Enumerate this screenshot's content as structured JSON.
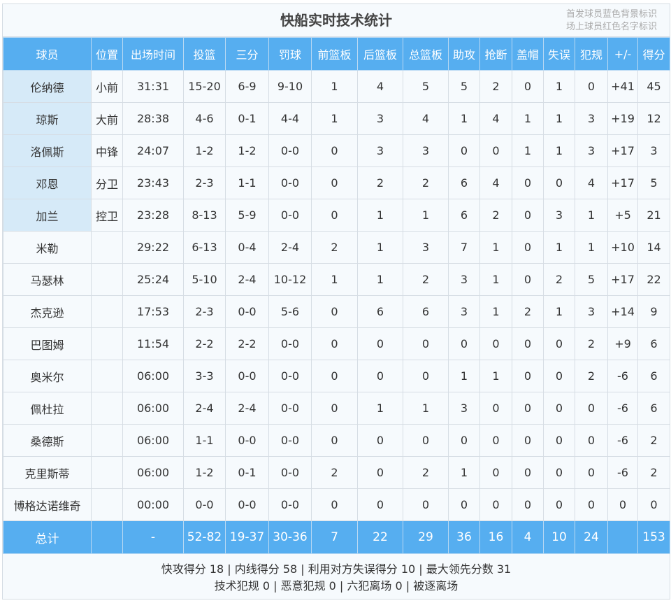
{
  "title": "快船实时技术统计",
  "legend": [
    "首发球员蓝色背景标识",
    "场上球员红色名字标识"
  ],
  "columns": [
    "球员",
    "位置",
    "出场时间",
    "投篮",
    "三分",
    "罚球",
    "前篮板",
    "后篮板",
    "总篮板",
    "助攻",
    "抢断",
    "盖帽",
    "失误",
    "犯规",
    "+/-",
    "得分"
  ],
  "rows": [
    {
      "starter": true,
      "cells": [
        "伦纳德",
        "小前",
        "31:31",
        "15-20",
        "6-9",
        "9-10",
        "1",
        "4",
        "5",
        "5",
        "2",
        "0",
        "1",
        "0",
        "+41",
        "45"
      ]
    },
    {
      "starter": true,
      "cells": [
        "琼斯",
        "大前",
        "28:38",
        "4-6",
        "0-1",
        "4-4",
        "1",
        "3",
        "4",
        "1",
        "4",
        "1",
        "1",
        "3",
        "+19",
        "12"
      ]
    },
    {
      "starter": true,
      "cells": [
        "洛佩斯",
        "中锋",
        "24:07",
        "1-2",
        "1-2",
        "0-0",
        "0",
        "3",
        "3",
        "0",
        "0",
        "1",
        "1",
        "3",
        "+17",
        "3"
      ]
    },
    {
      "starter": true,
      "cells": [
        "邓恩",
        "分卫",
        "23:43",
        "2-3",
        "1-1",
        "0-0",
        "0",
        "2",
        "2",
        "6",
        "4",
        "0",
        "0",
        "4",
        "+17",
        "5"
      ]
    },
    {
      "starter": true,
      "cells": [
        "加兰",
        "控卫",
        "23:28",
        "8-13",
        "5-9",
        "0-0",
        "0",
        "1",
        "1",
        "6",
        "2",
        "0",
        "3",
        "1",
        "+5",
        "21"
      ]
    },
    {
      "starter": false,
      "cells": [
        "米勒",
        "",
        "29:22",
        "6-13",
        "0-4",
        "2-4",
        "2",
        "1",
        "3",
        "7",
        "1",
        "0",
        "1",
        "1",
        "+10",
        "14"
      ]
    },
    {
      "starter": false,
      "cells": [
        "马瑟林",
        "",
        "25:24",
        "5-10",
        "2-4",
        "10-12",
        "1",
        "1",
        "2",
        "3",
        "1",
        "0",
        "2",
        "5",
        "+17",
        "22"
      ]
    },
    {
      "starter": false,
      "cells": [
        "杰克逊",
        "",
        "17:53",
        "2-3",
        "0-0",
        "5-6",
        "0",
        "6",
        "6",
        "3",
        "1",
        "2",
        "1",
        "3",
        "+14",
        "9"
      ]
    },
    {
      "starter": false,
      "cells": [
        "巴图姆",
        "",
        "11:54",
        "2-2",
        "2-2",
        "0-0",
        "0",
        "0",
        "0",
        "0",
        "0",
        "0",
        "0",
        "2",
        "+9",
        "6"
      ]
    },
    {
      "starter": false,
      "cells": [
        "奥米尔",
        "",
        "06:00",
        "3-3",
        "0-0",
        "0-0",
        "0",
        "0",
        "0",
        "1",
        "1",
        "0",
        "0",
        "2",
        "-6",
        "6"
      ]
    },
    {
      "starter": false,
      "cells": [
        "佩杜拉",
        "",
        "06:00",
        "2-4",
        "2-4",
        "0-0",
        "0",
        "1",
        "1",
        "3",
        "0",
        "0",
        "0",
        "0",
        "-6",
        "6"
      ]
    },
    {
      "starter": false,
      "cells": [
        "桑德斯",
        "",
        "06:00",
        "1-1",
        "0-0",
        "0-0",
        "0",
        "0",
        "0",
        "0",
        "0",
        "0",
        "0",
        "0",
        "-6",
        "2"
      ]
    },
    {
      "starter": false,
      "cells": [
        "克里斯蒂",
        "",
        "06:00",
        "1-2",
        "0-1",
        "0-0",
        "2",
        "0",
        "2",
        "1",
        "0",
        "0",
        "0",
        "0",
        "-6",
        "2"
      ]
    },
    {
      "starter": false,
      "cells": [
        "博格达诺维奇",
        "",
        "00:00",
        "0-0",
        "0-0",
        "0-0",
        "0",
        "0",
        "0",
        "0",
        "0",
        "0",
        "0",
        "0",
        "0",
        "0"
      ]
    }
  ],
  "total": [
    "总计",
    "",
    "-",
    "52-82",
    "19-37",
    "30-36",
    "7",
    "22",
    "29",
    "36",
    "16",
    "4",
    "10",
    "24",
    "",
    "153"
  ],
  "footer": [
    "快攻得分 18 | 内线得分 58 | 利用对方失误得分 10 | 最大领先分数 31",
    "技术犯规 0 | 恶意犯规 0 | 六犯离场 0 | 被逐离场"
  ],
  "colors": {
    "header": "#56aef0",
    "starter_bg": "#d6eaf8"
  }
}
